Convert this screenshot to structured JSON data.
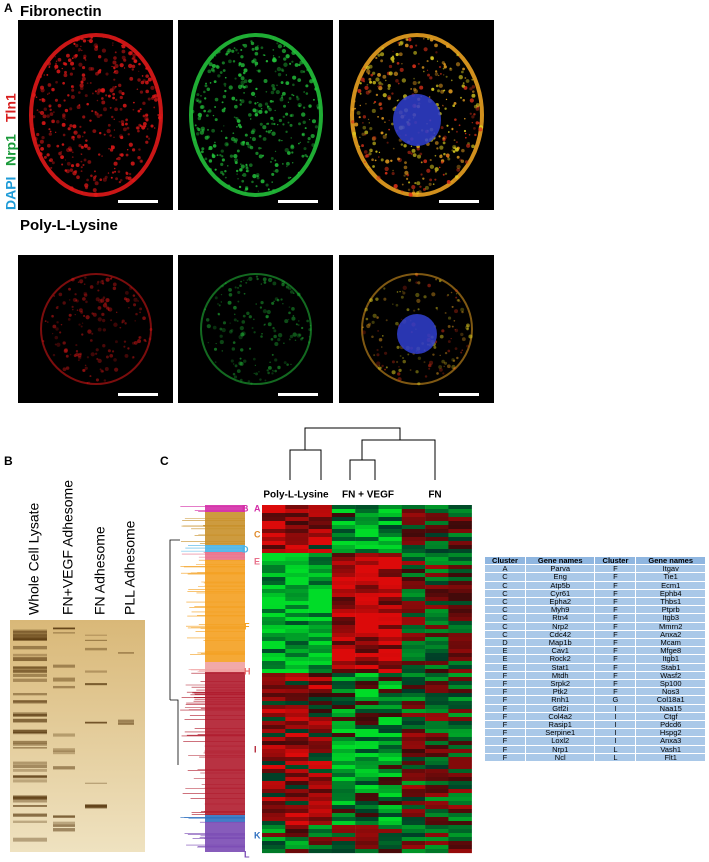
{
  "panel_a": {
    "label": "A",
    "fibronectin": "Fibronectin",
    "poly_l_lysine": "Poly-L-Lysine",
    "stain_labels": [
      {
        "text": "DAPI",
        "color": "#1e9bd7"
      },
      {
        "text": "Nrp1",
        "color": "#1a9a3a"
      },
      {
        "text": "Tln1",
        "color": "#d81e1e"
      }
    ]
  },
  "panel_b": {
    "label": "B",
    "lanes": [
      "Whole Cell Lysate",
      "FN+VEGF Adhesome",
      "FN Adhesome",
      "PLL Adhesome"
    ]
  },
  "panel_c": {
    "label": "C",
    "conditions": [
      "Poly-L-Lysine",
      "FN + VEGF",
      "FN"
    ],
    "clusters": [
      {
        "label": "B",
        "color": "#d42fa8"
      },
      {
        "label": "A",
        "color": "#d42fa8"
      },
      {
        "label": "C",
        "color": "#e08a2a"
      },
      {
        "label": "D",
        "color": "#4ab4e6"
      },
      {
        "label": "E",
        "color": "#e8708a"
      },
      {
        "label": "F",
        "color": "#f4a020"
      },
      {
        "label": "H",
        "color": "#e86a6a"
      },
      {
        "label": "I",
        "color": "#b01c2e"
      },
      {
        "label": "K",
        "color": "#2e70c0"
      },
      {
        "label": "L",
        "color": "#7a4ab4"
      }
    ]
  },
  "table": {
    "header": [
      "Cluster",
      "Gene names",
      "Cluster",
      "Gene names"
    ],
    "rows": [
      [
        "A",
        "Parva",
        "F",
        "Itgav"
      ],
      [
        "C",
        "Eng",
        "F",
        "Tie1"
      ],
      [
        "C",
        "Atp5b",
        "F",
        "Ecm1"
      ],
      [
        "C",
        "Cyr61",
        "F",
        "Ephb4"
      ],
      [
        "C",
        "Epha2",
        "F",
        "Thbs1"
      ],
      [
        "C",
        "Myh9",
        "F",
        "Ptprb"
      ],
      [
        "C",
        "Rtn4",
        "F",
        "Itgb3"
      ],
      [
        "C",
        "Nrp2",
        "F",
        "Mmrn2"
      ],
      [
        "C",
        "Cdc42",
        "F",
        "Anxa2"
      ],
      [
        "D",
        "Map1b",
        "F",
        "Mcam"
      ],
      [
        "E",
        "Cav1",
        "F",
        "Mfge8"
      ],
      [
        "E",
        "Rock2",
        "F",
        "Itgb1"
      ],
      [
        "E",
        "Stat1",
        "F",
        "Stab1"
      ],
      [
        "F",
        "Mtdh",
        "F",
        "Wasf2"
      ],
      [
        "F",
        "Srpk2",
        "F",
        "Sp100"
      ],
      [
        "F",
        "Ptk2",
        "F",
        "Nos3"
      ],
      [
        "F",
        "Rnh1",
        "G",
        "Col18a1"
      ],
      [
        "F",
        "Gtf2i",
        "I",
        "Naa15"
      ],
      [
        "F",
        "Col4a2",
        "I",
        "Ctgf"
      ],
      [
        "F",
        "Rasip1",
        "I",
        "Pdcd6"
      ],
      [
        "F",
        "Serpine1",
        "I",
        "Hspg2"
      ],
      [
        "F",
        "Loxl2",
        "I",
        "Anxa3"
      ],
      [
        "F",
        "Nrp1",
        "L",
        "Vash1"
      ],
      [
        "F",
        "Ncl",
        "L",
        "Flt1"
      ]
    ]
  }
}
